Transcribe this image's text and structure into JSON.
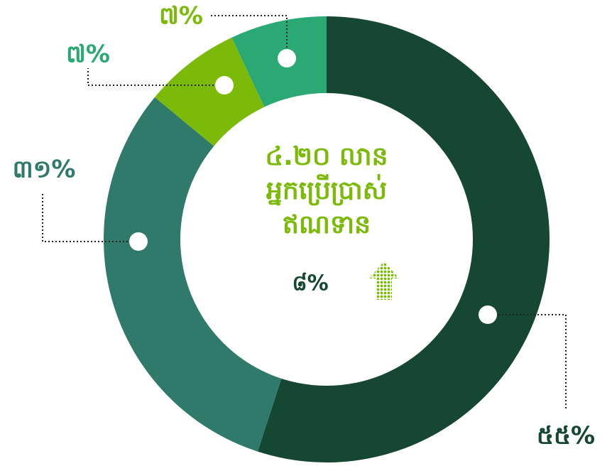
{
  "chart_data": {
    "type": "donut",
    "categories": [
      null,
      null,
      null,
      null
    ],
    "series": [
      {
        "name": null,
        "values": [
          55,
          31,
          7,
          7
        ],
        "value_labels": [
          "៥៥%",
          "៣១%",
          "៧%",
          "៧%"
        ],
        "colors": [
          "#154732",
          "#2f7a6b",
          "#7cba0a",
          "#2aa975"
        ]
      }
    ],
    "center_text": [
      "៤.២០ លាន",
      "អ្នកប្រើប្រាស់",
      "ឥណទាន"
    ],
    "annotation": "៨%"
  }
}
